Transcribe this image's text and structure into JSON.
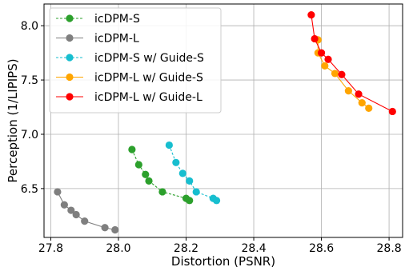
{
  "chart_data": {
    "type": "line",
    "xlabel": "Distortion (PSNR)",
    "ylabel": "Perception (1/LIPIPS)",
    "xlim": [
      27.78,
      28.84
    ],
    "ylim": [
      6.05,
      8.2
    ],
    "xticks": [
      "27.8",
      "28.0",
      "28.2",
      "28.4",
      "28.6",
      "28.8"
    ],
    "yticks": [
      "6.5",
      "7.0",
      "7.5",
      "8.0"
    ],
    "grid": true,
    "legend_position": "top-left",
    "series": [
      {
        "name": "icDPM-S",
        "color": "#2ca02c",
        "dashed": true,
        "points": [
          [
            28.04,
            6.86
          ],
          [
            28.06,
            6.72
          ],
          [
            28.08,
            6.63
          ],
          [
            28.09,
            6.57
          ],
          [
            28.13,
            6.47
          ],
          [
            28.2,
            6.41
          ],
          [
            28.21,
            6.39
          ]
        ]
      },
      {
        "name": "icDPM-L",
        "color": "#7f7f7f",
        "dashed": false,
        "points": [
          [
            27.82,
            6.47
          ],
          [
            27.84,
            6.35
          ],
          [
            27.86,
            6.3
          ],
          [
            27.875,
            6.26
          ],
          [
            27.9,
            6.2
          ],
          [
            27.96,
            6.14
          ],
          [
            27.99,
            6.12
          ]
        ]
      },
      {
        "name": "icDPM-S w/ Guide-S",
        "color": "#17becf",
        "dashed": true,
        "points": [
          [
            28.15,
            6.9
          ],
          [
            28.17,
            6.74
          ],
          [
            28.19,
            6.64
          ],
          [
            28.21,
            6.57
          ],
          [
            28.23,
            6.47
          ],
          [
            28.28,
            6.41
          ],
          [
            28.29,
            6.39
          ]
        ]
      },
      {
        "name": "icDPM-L w/ Guide-S",
        "color": "#ffa500",
        "dashed": false,
        "points": [
          [
            28.59,
            7.87
          ],
          [
            28.59,
            7.75
          ],
          [
            28.61,
            7.63
          ],
          [
            28.64,
            7.56
          ],
          [
            28.68,
            7.4
          ],
          [
            28.72,
            7.29
          ],
          [
            28.74,
            7.24
          ]
        ]
      },
      {
        "name": "icDPM-L w/ Guide-L",
        "color": "#ff0000",
        "dashed": false,
        "points": [
          [
            28.57,
            8.1
          ],
          [
            28.58,
            7.88
          ],
          [
            28.6,
            7.75
          ],
          [
            28.62,
            7.69
          ],
          [
            28.66,
            7.55
          ],
          [
            28.71,
            7.37
          ],
          [
            28.81,
            7.21
          ]
        ]
      }
    ]
  }
}
